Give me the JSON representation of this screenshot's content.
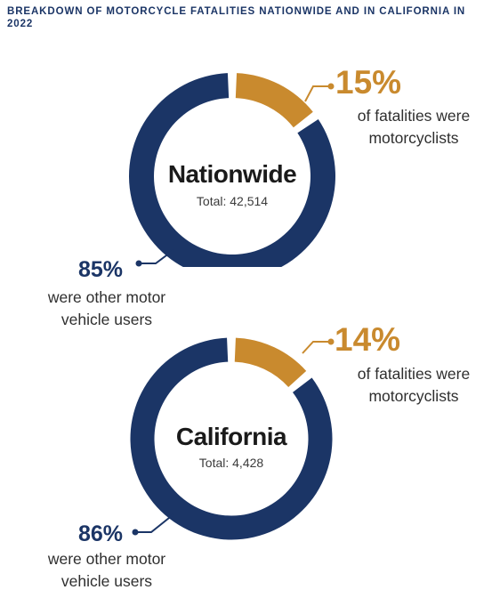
{
  "title": "BREAKDOWN OF MOTORCYCLE FATALITIES NATIONWIDE AND IN CALIFORNIA IN 2022",
  "colors": {
    "motorcyclists": "#c98a2e",
    "other": "#1b3566",
    "heading": "#1b3566"
  },
  "chart_data": [
    {
      "type": "pie",
      "title": "Nationwide",
      "total_label": "Total: 42,514",
      "slices": [
        {
          "label": "of fatalities were motorcyclists",
          "pct_label": "15%",
          "value": 15,
          "color": "#c98a2e"
        },
        {
          "label": "were other motor vehicle users",
          "pct_label": "85%",
          "value": 85,
          "color": "#1b3566"
        }
      ]
    },
    {
      "type": "pie",
      "title": "California",
      "total_label": "Total: 4,428",
      "slices": [
        {
          "label": "of fatalities were motorcyclists",
          "pct_label": "14%",
          "value": 14,
          "color": "#c98a2e"
        },
        {
          "label": "were other motor vehicle users",
          "pct_label": "86%",
          "value": 86,
          "color": "#1b3566"
        }
      ]
    }
  ],
  "captions": {
    "moto_line1": "of fatalities were",
    "moto_line2": "motorcyclists",
    "other_line1": "were other motor",
    "other_line2": "vehicle users"
  }
}
